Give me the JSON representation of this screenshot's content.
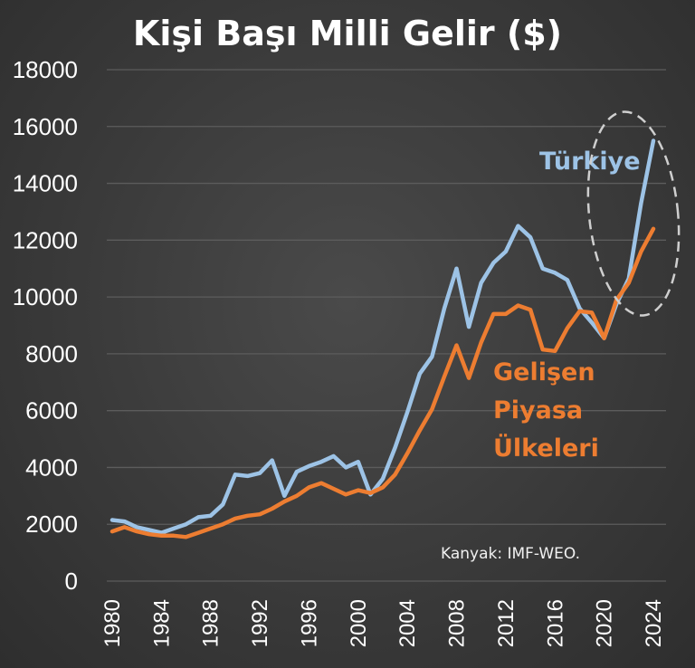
{
  "chart_data": {
    "type": "line",
    "title": "Kişi Başı Milli Gelir ($)",
    "xlabel": "",
    "ylabel": "",
    "ylim": [
      0,
      18000
    ],
    "xlim": [
      1980,
      2024
    ],
    "yticks": [
      0,
      2000,
      4000,
      6000,
      8000,
      10000,
      12000,
      14000,
      16000,
      18000
    ],
    "xticks": [
      1980,
      1984,
      1988,
      1992,
      1996,
      2000,
      2004,
      2008,
      2012,
      2016,
      2020,
      2024
    ],
    "grid": "horizontal",
    "source": "Kanyak: IMF-WEO.",
    "x": [
      1980,
      1981,
      1982,
      1983,
      1984,
      1985,
      1986,
      1987,
      1988,
      1989,
      1990,
      1991,
      1992,
      1993,
      1994,
      1995,
      1996,
      1997,
      1998,
      1999,
      2000,
      2001,
      2002,
      2003,
      2004,
      2005,
      2006,
      2007,
      2008,
      2009,
      2010,
      2011,
      2012,
      2013,
      2014,
      2015,
      2016,
      2017,
      2018,
      2019,
      2020,
      2021,
      2022,
      2023,
      2024
    ],
    "series": [
      {
        "name": "Türkiye",
        "color": "#9dc3e6",
        "label_lines": [
          "Türkiye"
        ],
        "values": [
          2150,
          2100,
          1900,
          1800,
          1700,
          1850,
          2000,
          2250,
          2300,
          2700,
          3750,
          3700,
          3800,
          4250,
          3000,
          3850,
          4050,
          4200,
          4400,
          4000,
          4200,
          3050,
          3600,
          4700,
          5950,
          7300,
          7900,
          9600,
          11000,
          8950,
          10500,
          11200,
          11600,
          12500,
          12100,
          11000,
          10850,
          10600,
          9600,
          9100,
          8550,
          9750,
          10650,
          13300,
          15500
        ]
      },
      {
        "name": "Gelişen Piyasa Ülkeleri",
        "color": "#ed7d31",
        "label_lines": [
          "Gelişen",
          "Piyasa",
          "Ülkeleri"
        ],
        "values": [
          1750,
          1900,
          1750,
          1650,
          1600,
          1600,
          1550,
          1700,
          1850,
          2000,
          2200,
          2300,
          2350,
          2550,
          2800,
          3000,
          3300,
          3450,
          3250,
          3050,
          3200,
          3100,
          3300,
          3750,
          4500,
          5300,
          6050,
          7200,
          8300,
          7150,
          8400,
          9400,
          9400,
          9700,
          9550,
          8150,
          8100,
          8900,
          9500,
          9450,
          8550,
          9900,
          10500,
          11600,
          12400
        ]
      }
    ],
    "annotation": "dashed ellipse around 2021-2024"
  }
}
